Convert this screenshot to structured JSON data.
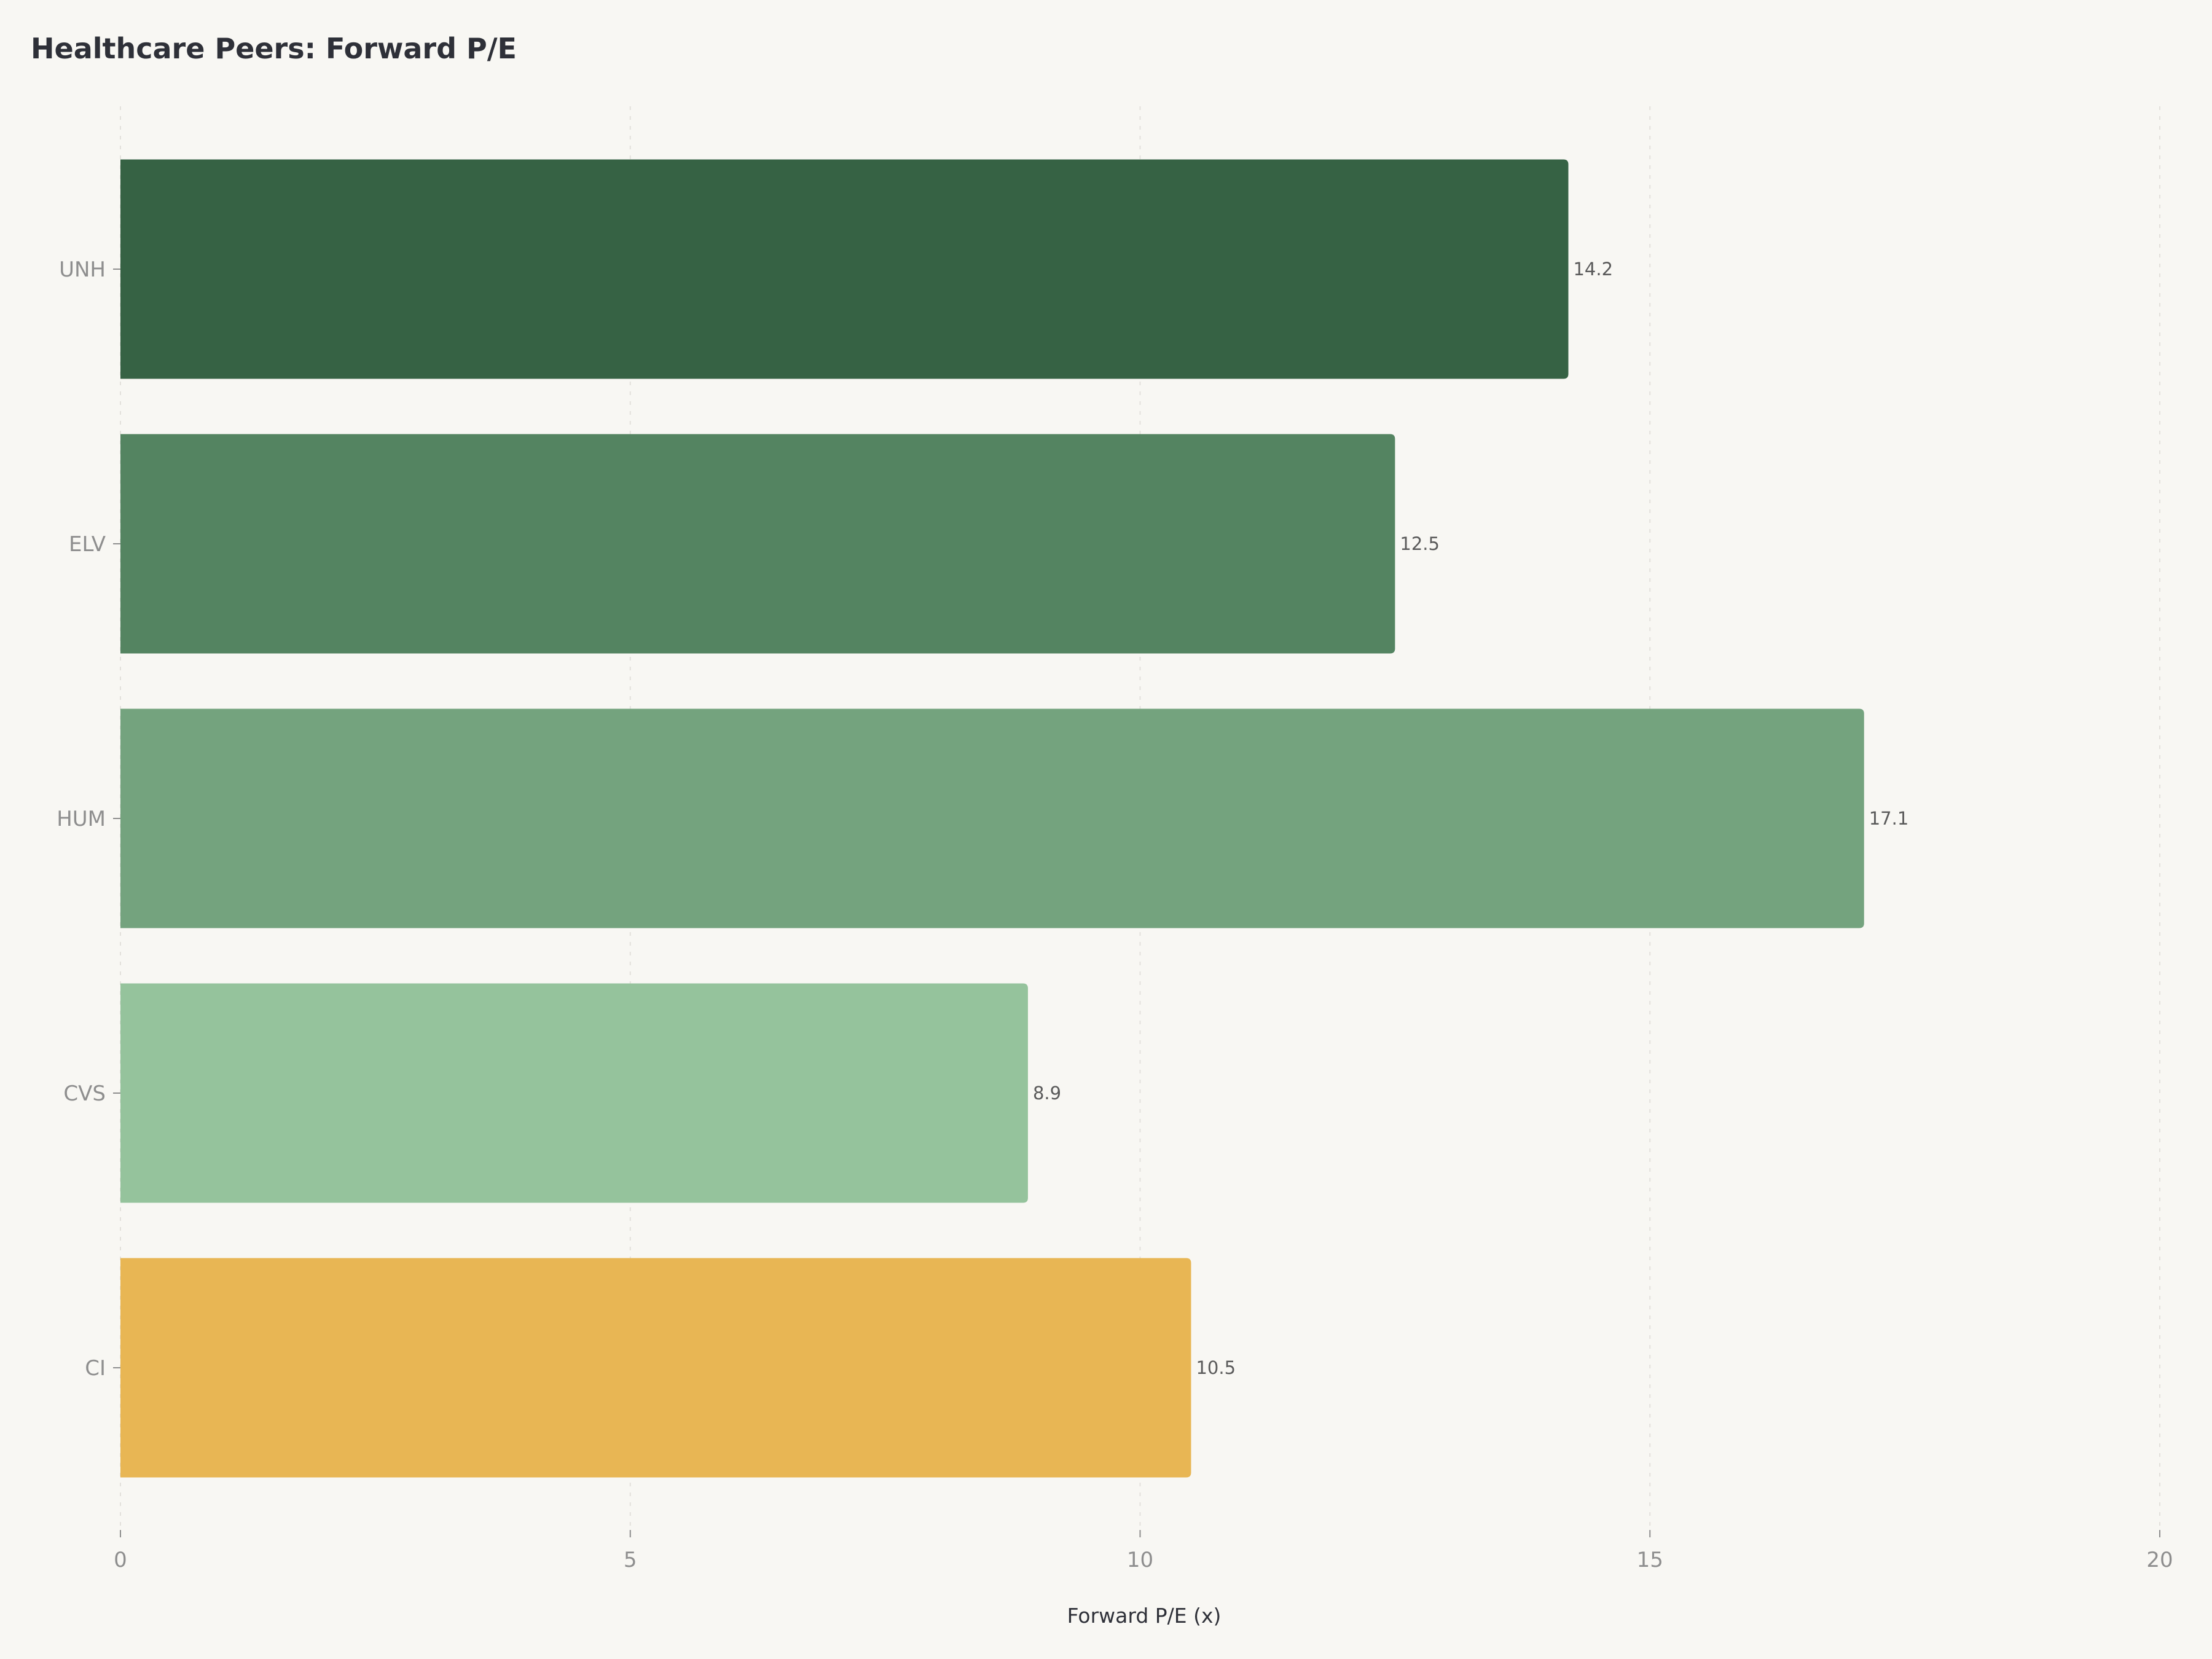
{
  "chart_data": {
    "type": "bar",
    "orientation": "horizontal",
    "title": "Healthcare Peers: Forward P/E",
    "xlabel": "Forward P/E (x)",
    "ylabel": "",
    "xlim": [
      0,
      20
    ],
    "xticks": [
      "0",
      "5",
      "10",
      "15",
      "20"
    ],
    "grid": true,
    "categories": [
      "UNH",
      "ELV",
      "HUM",
      "CVS",
      "CI"
    ],
    "values": [
      14.2,
      12.5,
      17.1,
      8.9,
      10.5
    ],
    "value_labels": [
      "14.2",
      "12.5",
      "17.1",
      "8.9",
      "10.5"
    ],
    "colors": [
      "#366244",
      "#548461",
      "#74a37e",
      "#95c39c",
      "#e8b654"
    ]
  }
}
